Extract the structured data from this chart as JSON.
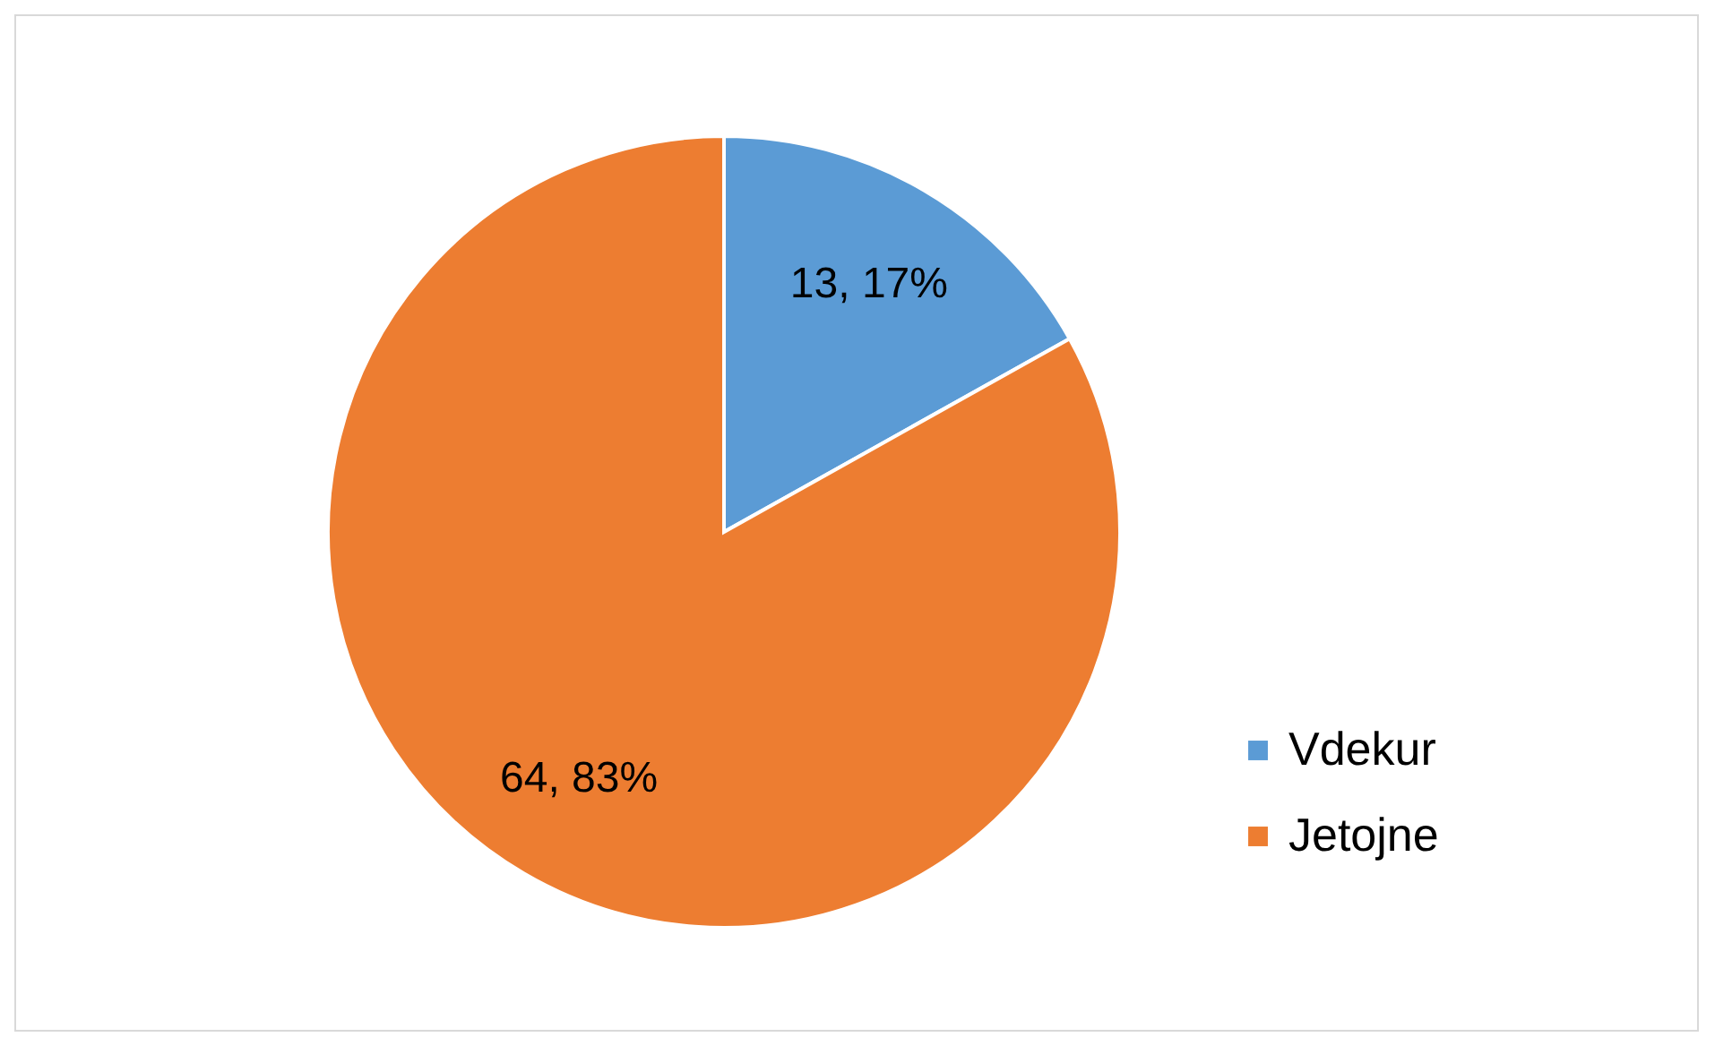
{
  "chart_data": {
    "type": "pie",
    "categories": [
      "Vdekur",
      "Jetojne"
    ],
    "values": [
      13,
      64
    ],
    "colors": [
      "#5b9bd5",
      "#ed7d31"
    ],
    "value_labels": [
      "13, 17%",
      "64, 83%"
    ],
    "legend": "right"
  }
}
